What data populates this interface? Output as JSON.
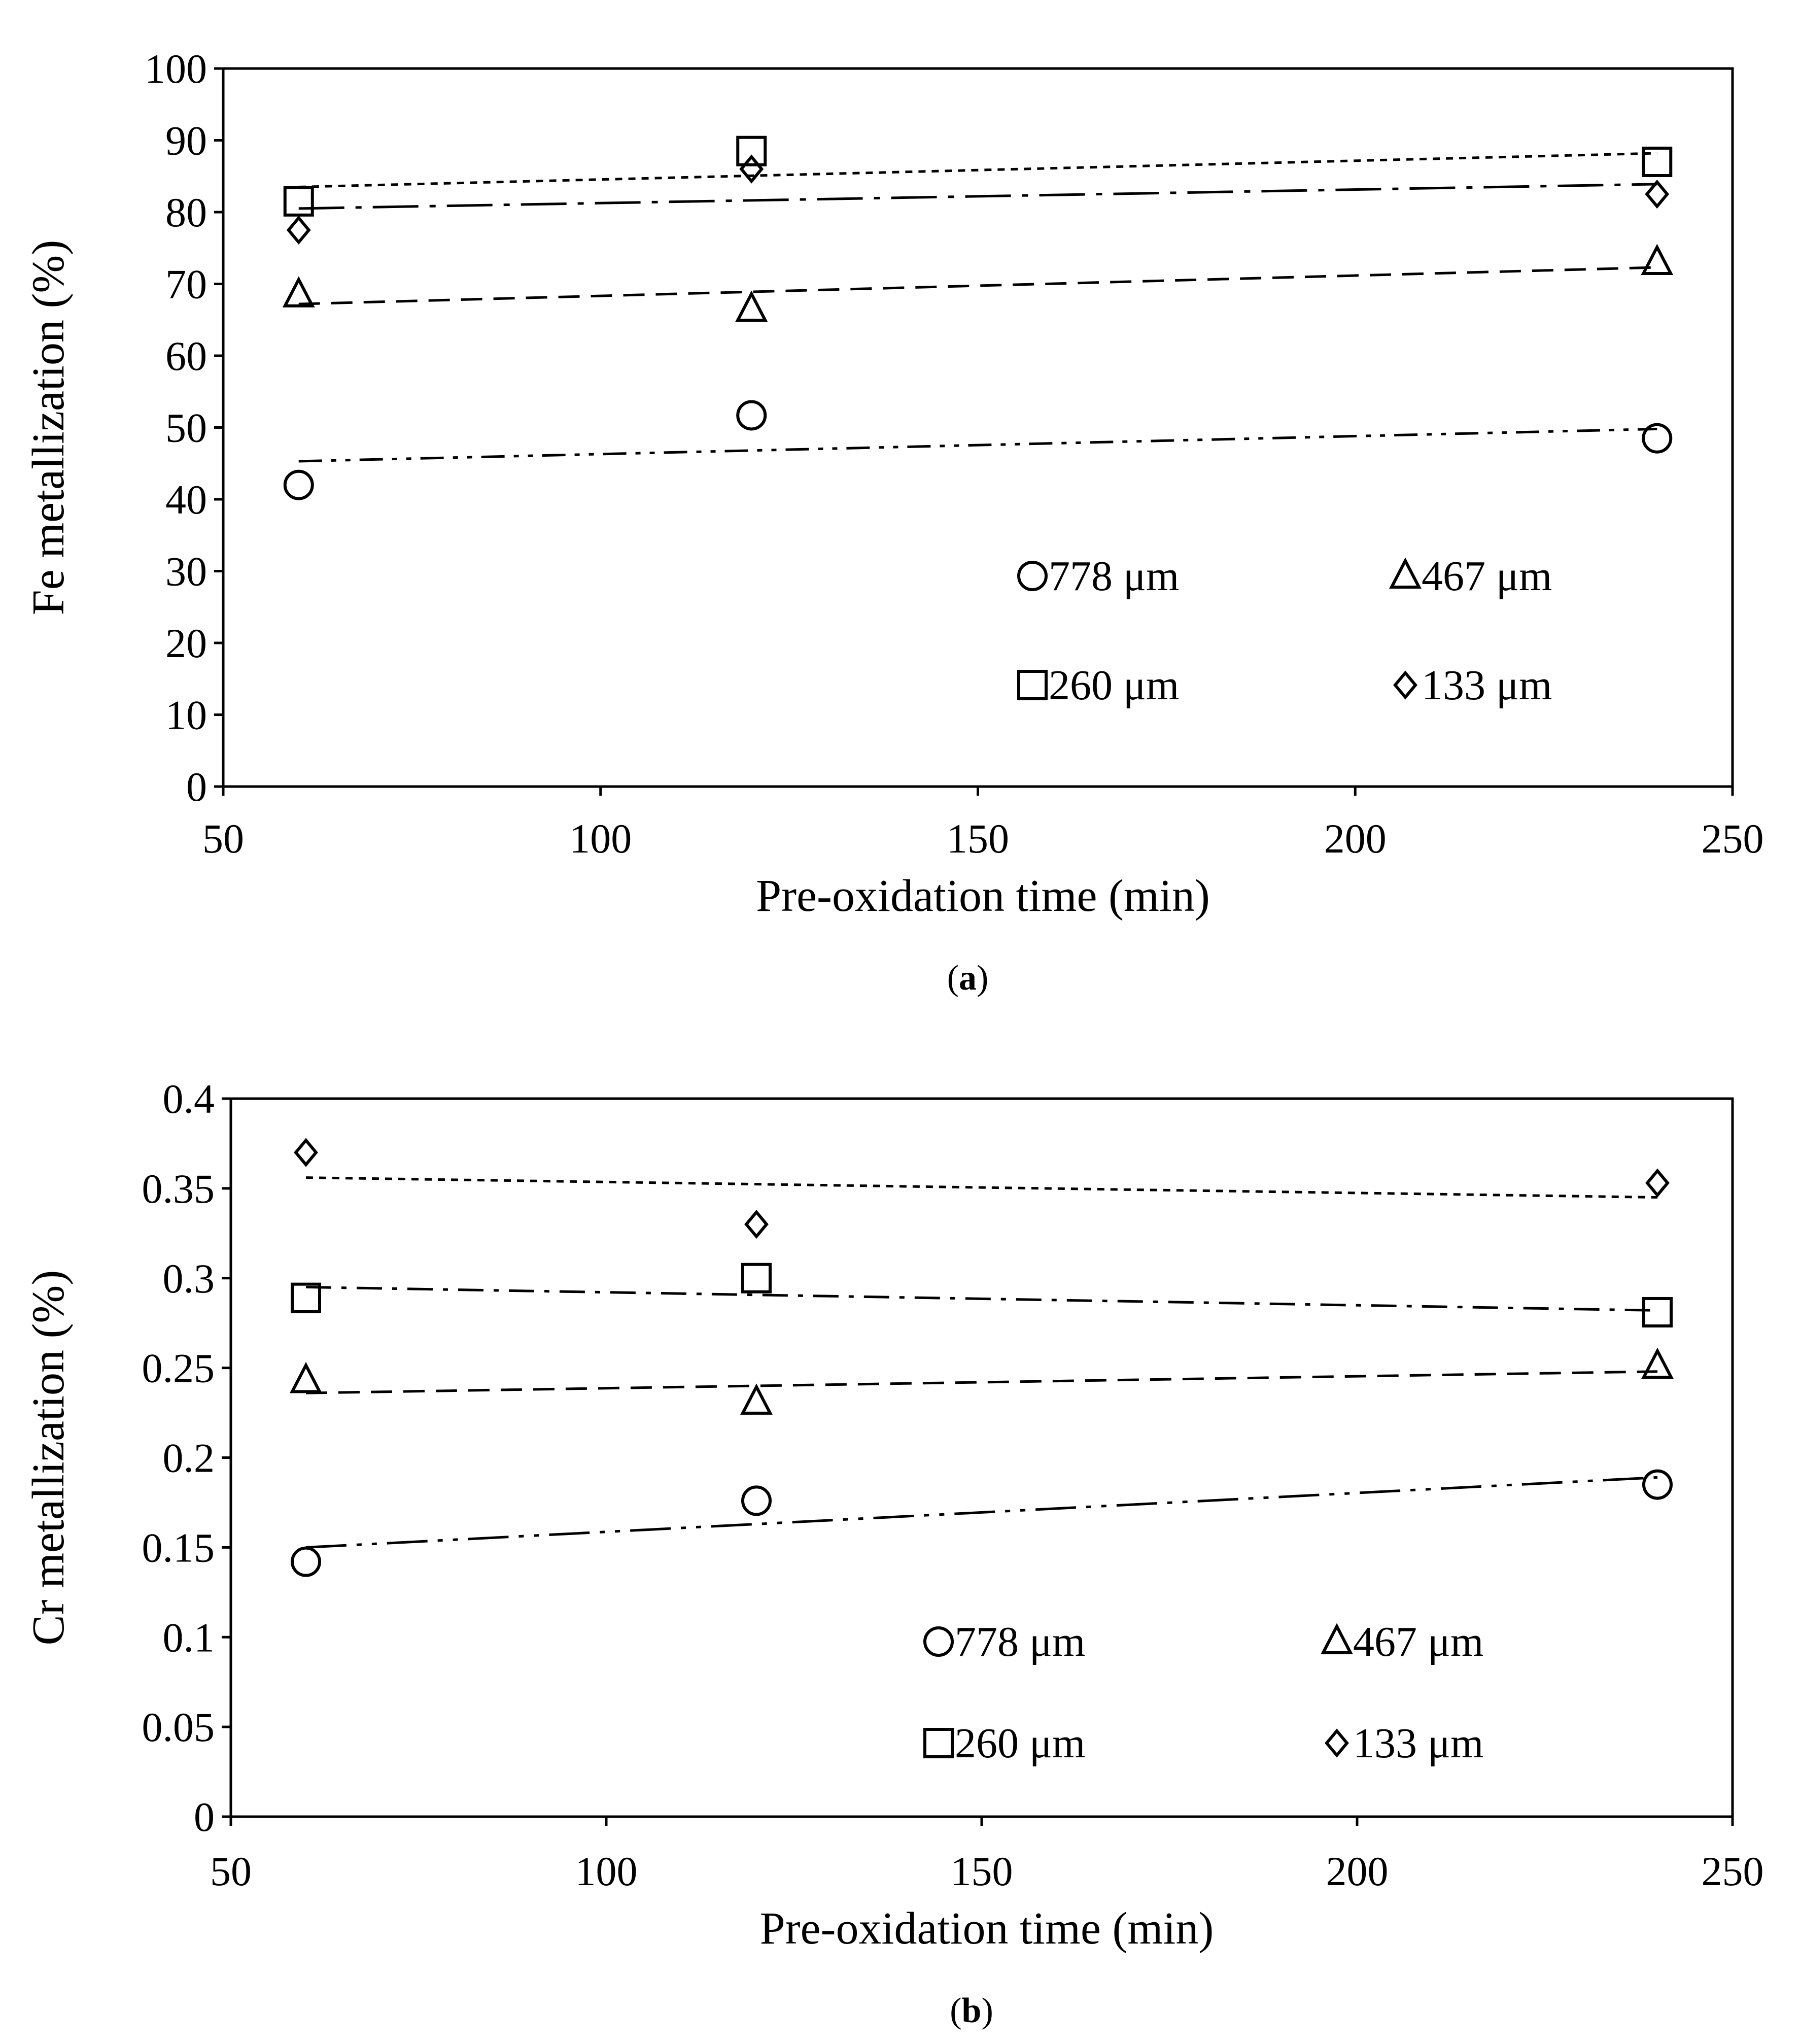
{
  "chart_data": [
    {
      "type": "scatter",
      "caption": "(a)",
      "caption_bold": "a",
      "title": "",
      "xlabel": "Pre-oxidation time (min)",
      "ylabel": "Fe metallization (%)",
      "xlim": [
        50,
        250
      ],
      "ylim": [
        0,
        100
      ],
      "xticks": [
        50,
        100,
        150,
        200,
        250
      ],
      "yticks": [
        0,
        10,
        20,
        30,
        40,
        50,
        60,
        70,
        80,
        90,
        100
      ],
      "yticks_labels": [
        "0",
        "10",
        "20",
        "30",
        "40",
        "50",
        "60",
        "70",
        "80",
        "90",
        "100"
      ],
      "grid": false,
      "legend": "bottom-right",
      "series": [
        {
          "name": "778 μm",
          "marker": "circle",
          "x": [
            60,
            120,
            240
          ],
          "y": [
            42,
            51.7,
            48.5
          ],
          "trend": [
            45.3,
            49.8
          ],
          "dash": "dash-dot-dot"
        },
        {
          "name": "467 μm",
          "marker": "triangle",
          "x": [
            60,
            120,
            240
          ],
          "y": [
            68.5,
            66.5,
            73
          ],
          "trend": [
            67.2,
            72.3
          ],
          "dash": "dashed"
        },
        {
          "name": "260 μm",
          "marker": "square",
          "x": [
            60,
            120,
            240
          ],
          "y": [
            81.5,
            88.5,
            87
          ],
          "trend": [
            83.5,
            88.2
          ],
          "dash": "dotted"
        },
        {
          "name": "133 μm",
          "marker": "diamond",
          "x": [
            60,
            120,
            240
          ],
          "y": [
            77.5,
            86,
            82.5
          ],
          "trend": [
            80.5,
            83.9
          ],
          "dash": "long-dash-dot"
        }
      ]
    },
    {
      "type": "scatter",
      "caption": "(b)",
      "caption_bold": "b",
      "title": "",
      "xlabel": "Pre-oxidation time (min)",
      "ylabel": "Cr metallization (%)",
      "xlim": [
        50,
        250
      ],
      "ylim": [
        0,
        0.4
      ],
      "xticks": [
        50,
        100,
        150,
        200,
        250
      ],
      "yticks": [
        0,
        0.05,
        0.1,
        0.15,
        0.2,
        0.25,
        0.3,
        0.35,
        0.4
      ],
      "yticks_labels": [
        "0",
        "0.05",
        "0.1",
        "0.15",
        "0.2",
        "0.25",
        "0.3",
        "0.35",
        "0.4"
      ],
      "grid": false,
      "legend": "bottom-right",
      "series": [
        {
          "name": "778 μm",
          "marker": "circle",
          "x": [
            60,
            120,
            240
          ],
          "y": [
            0.142,
            0.176,
            0.185
          ],
          "trend": [
            0.15,
            0.189
          ],
          "dash": "long-dash-dot-dot"
        },
        {
          "name": "467 μm",
          "marker": "triangle",
          "x": [
            60,
            120,
            240
          ],
          "y": [
            0.243,
            0.231,
            0.251
          ],
          "trend": [
            0.236,
            0.248
          ],
          "dash": "dashed"
        },
        {
          "name": "260 μm",
          "marker": "square",
          "x": [
            60,
            120,
            240
          ],
          "y": [
            0.289,
            0.3,
            0.281
          ],
          "trend": [
            0.295,
            0.282
          ],
          "dash": "dash-dot"
        },
        {
          "name": "133 μm",
          "marker": "diamond",
          "x": [
            60,
            120,
            240
          ],
          "y": [
            0.37,
            0.33,
            0.353
          ],
          "trend": [
            0.356,
            0.345
          ],
          "dash": "dotted"
        }
      ]
    }
  ]
}
